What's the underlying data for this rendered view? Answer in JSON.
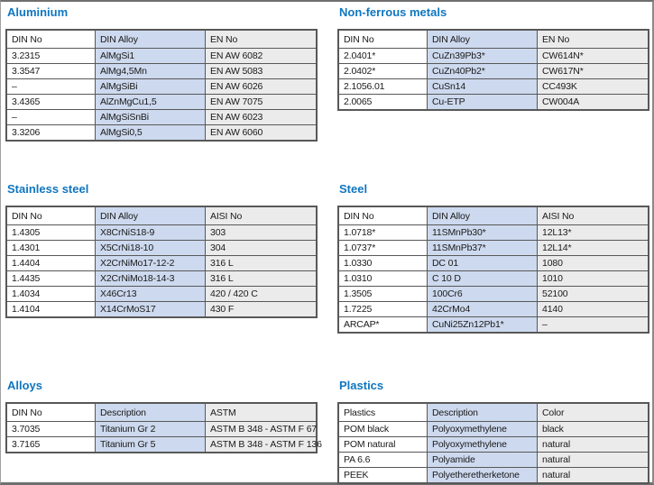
{
  "colors": {
    "title_blue": "#0f76c0",
    "header_bg": "#c6c6c6",
    "din_no_col_bg": "#ffffff",
    "din_alloy_col_bg": "#cdd9ee",
    "third_col_bg": "#ebebeb",
    "table_border": "#585858",
    "text": "#1a1a1a"
  },
  "sections": [
    {
      "id": "aluminium",
      "title": "Aluminium",
      "headers": [
        "DIN No",
        "DIN Alloy",
        "EN No"
      ],
      "rows": [
        [
          "3.2315",
          "AlMgSi1",
          "EN AW 6082"
        ],
        [
          "3.3547",
          "AlMg4,5Mn",
          "EN AW 5083"
        ],
        [
          "–",
          "AlMgSiBi",
          "EN AW 6026"
        ],
        [
          "3.4365",
          "AlZnMgCu1,5",
          "EN AW 7075"
        ],
        [
          "–",
          "AlMgSiSnBi",
          "EN AW 6023"
        ],
        [
          "3.3206",
          "AlMgSi0,5",
          "EN AW 6060"
        ]
      ]
    },
    {
      "id": "non-ferrous-metals",
      "title": "Non-ferrous metals",
      "headers": [
        "DIN No",
        "DIN Alloy",
        "EN No"
      ],
      "rows": [
        [
          "2.0401*",
          "CuZn39Pb3*",
          "CW614N*"
        ],
        [
          "2.0402*",
          "CuZn40Pb2*",
          "CW617N*"
        ],
        [
          "2.1056.01",
          "CuSn14",
          "CC493K"
        ],
        [
          "2.0065",
          "Cu-ETP",
          "CW004A"
        ]
      ]
    },
    {
      "id": "stainless-steel",
      "title": "Stainless steel",
      "headers": [
        "DIN No",
        "DIN Alloy",
        "AISI No"
      ],
      "rows": [
        [
          "1.4305",
          "X8CrNiS18-9",
          "303"
        ],
        [
          "1.4301",
          "X5CrNi18-10",
          "304"
        ],
        [
          "1.4404",
          "X2CrNiMo17-12-2",
          "316 L"
        ],
        [
          "1.4435",
          "X2CrNiMo18-14-3",
          "316 L"
        ],
        [
          "1.4034",
          "X46Cr13",
          "420 / 420 C"
        ],
        [
          "1.4104",
          "X14CrMoS17",
          "430 F"
        ]
      ]
    },
    {
      "id": "steel",
      "title": "Steel",
      "headers": [
        "DIN No",
        "DIN Alloy",
        "AISI No"
      ],
      "rows": [
        [
          "1.0718*",
          "11SMnPb30*",
          "12L13*"
        ],
        [
          "1.0737*",
          "11SMnPb37*",
          "12L14*"
        ],
        [
          "1.0330",
          "DC 01",
          "1080"
        ],
        [
          "1.0310",
          "C 10 D",
          "1010"
        ],
        [
          "1.3505",
          "100Cr6",
          "52100"
        ],
        [
          "1.7225",
          "42CrMo4",
          "4140"
        ],
        [
          "ARCAP*",
          "CuNi25Zn12Pb1*",
          "–"
        ]
      ]
    },
    {
      "id": "alloys",
      "title": "Alloys",
      "headers": [
        "DIN No",
        "Description",
        "ASTM"
      ],
      "rows": [
        [
          "3.7035",
          "Titanium Gr 2",
          "ASTM B 348 - ASTM F 67"
        ],
        [
          "3.7165",
          "Titanium Gr 5",
          "ASTM B 348 - ASTM F 136"
        ]
      ]
    },
    {
      "id": "plastics",
      "title": "Plastics",
      "headers": [
        "Plastics",
        "Description",
        "Color"
      ],
      "rows": [
        [
          "POM black",
          "Polyoxymethylene",
          "black"
        ],
        [
          "POM natural",
          "Polyoxymethylene",
          "natural"
        ],
        [
          "PA 6.6",
          "Polyamide",
          "natural"
        ],
        [
          "PEEK",
          "Polyetheretherketone",
          "natural"
        ]
      ]
    }
  ]
}
